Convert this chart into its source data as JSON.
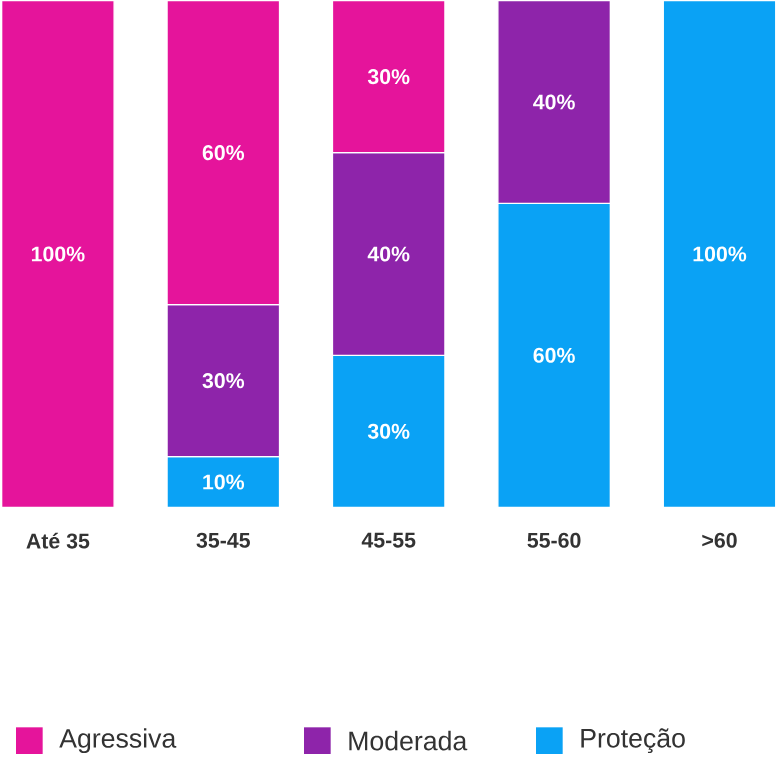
{
  "chart_data": {
    "type": "bar",
    "stacked": true,
    "categories": [
      "Até 35",
      "35-45",
      "45-55",
      "55-60",
      ">60"
    ],
    "series": [
      {
        "name": "Proteção",
        "color": "#0aa2f5",
        "values": [
          null,
          10,
          30,
          60,
          100
        ],
        "value_labels": [
          null,
          "10%",
          "30%",
          "60%",
          "100%"
        ]
      },
      {
        "name": "Moderada",
        "color": "#8e24aa",
        "values": [
          null,
          30,
          40,
          40,
          null
        ],
        "value_labels": [
          null,
          "30%",
          "40%",
          "40%",
          null
        ]
      },
      {
        "name": "Agressiva",
        "color": "#e5149b",
        "values": [
          100,
          60,
          30,
          null,
          null
        ],
        "value_labels": [
          "100%",
          "60%",
          "30%",
          null,
          null
        ]
      }
    ],
    "legend": "bottom"
  }
}
